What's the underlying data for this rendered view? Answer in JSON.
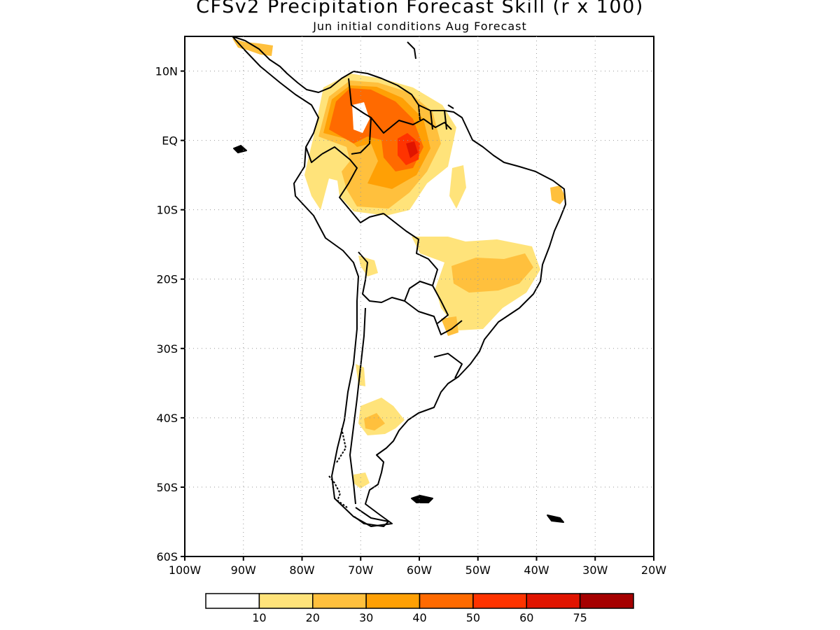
{
  "header": {
    "title": "CFSv2 Precipitation Forecast Skill (r x 100)",
    "subtitle": "Jun initial conditions  Aug Forecast"
  },
  "map": {
    "lon_range": [
      -100,
      -20
    ],
    "lat_range": [
      -60,
      15
    ],
    "lon_ticks": [
      "100W",
      "90W",
      "80W",
      "70W",
      "60W",
      "50W",
      "40W",
      "30W",
      "20W"
    ],
    "lat_ticks": [
      "10N",
      "EQ",
      "10S",
      "20S",
      "30S",
      "40S",
      "50S",
      "60S"
    ],
    "grid": "dotted"
  },
  "colorbar": {
    "colors": [
      "#ffffff",
      "#ffe37a",
      "#ffc03d",
      "#ffa005",
      "#ff6a00",
      "#ff3300",
      "#e01400",
      "#a50000"
    ],
    "labels": [
      "10",
      "20",
      "30",
      "40",
      "50",
      "60",
      "75"
    ]
  }
}
